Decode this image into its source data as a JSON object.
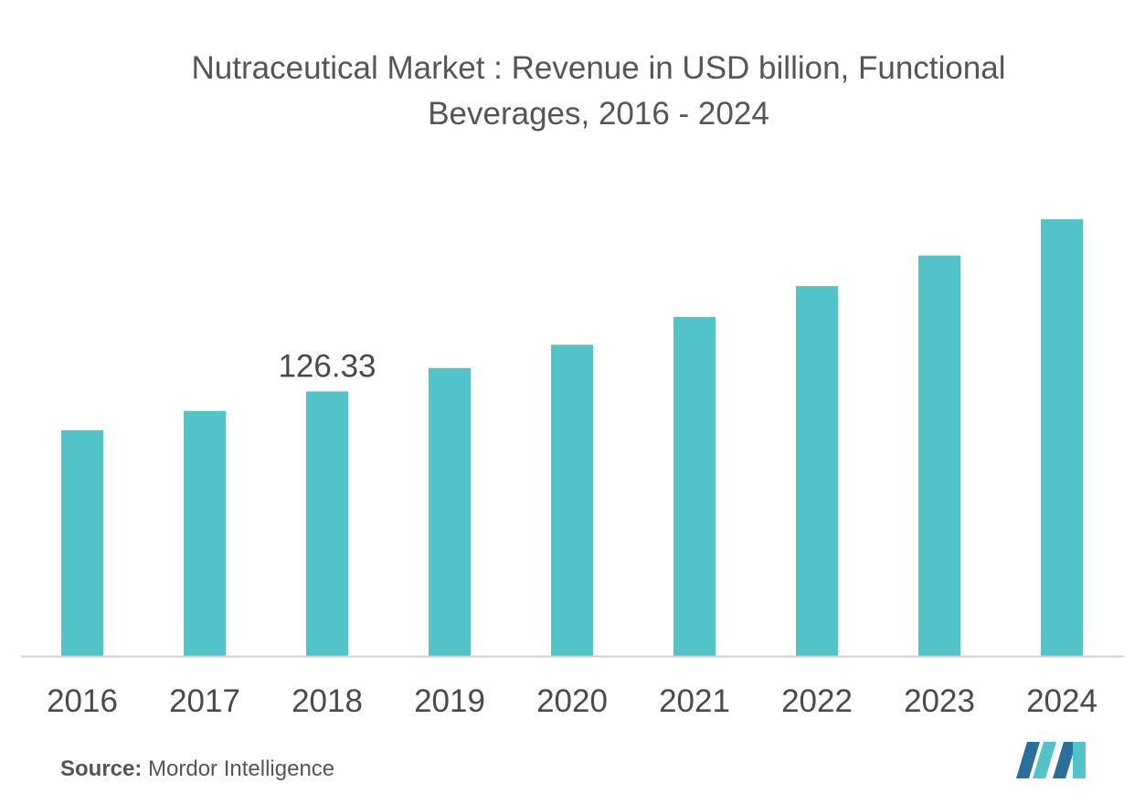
{
  "title_line1": "Nutraceutical Market : Revenue in USD billion, Functional",
  "title_line2": "Beverages, 2016 - 2024",
  "source_label": "Source:",
  "source_text": "Mordor Intelligence",
  "colors": {
    "bar": "#52c3c9",
    "axis": "#d0d0d0",
    "text": "#4a4a4a",
    "logo_dark": "#2a6f9a",
    "logo_light": "#52c3c9"
  },
  "logo_icon": "mordor-intelligence-logo",
  "chart_data": {
    "type": "bar",
    "title": "Nutraceutical Market : Revenue in USD billion, Functional Beverages, 2016 - 2024",
    "xlabel": "",
    "ylabel": "",
    "categories": [
      "2016",
      "2017",
      "2018",
      "2019",
      "2020",
      "2021",
      "2022",
      "2023",
      "2024"
    ],
    "values": [
      107.8,
      117.0,
      126.33,
      137.5,
      148.6,
      161.9,
      176.6,
      191.2,
      208.5
    ],
    "data_labels": [
      {
        "category": "2018",
        "text": "126.33"
      }
    ],
    "ylim": [
      0,
      208.5
    ],
    "grid": false,
    "legend": "none"
  }
}
